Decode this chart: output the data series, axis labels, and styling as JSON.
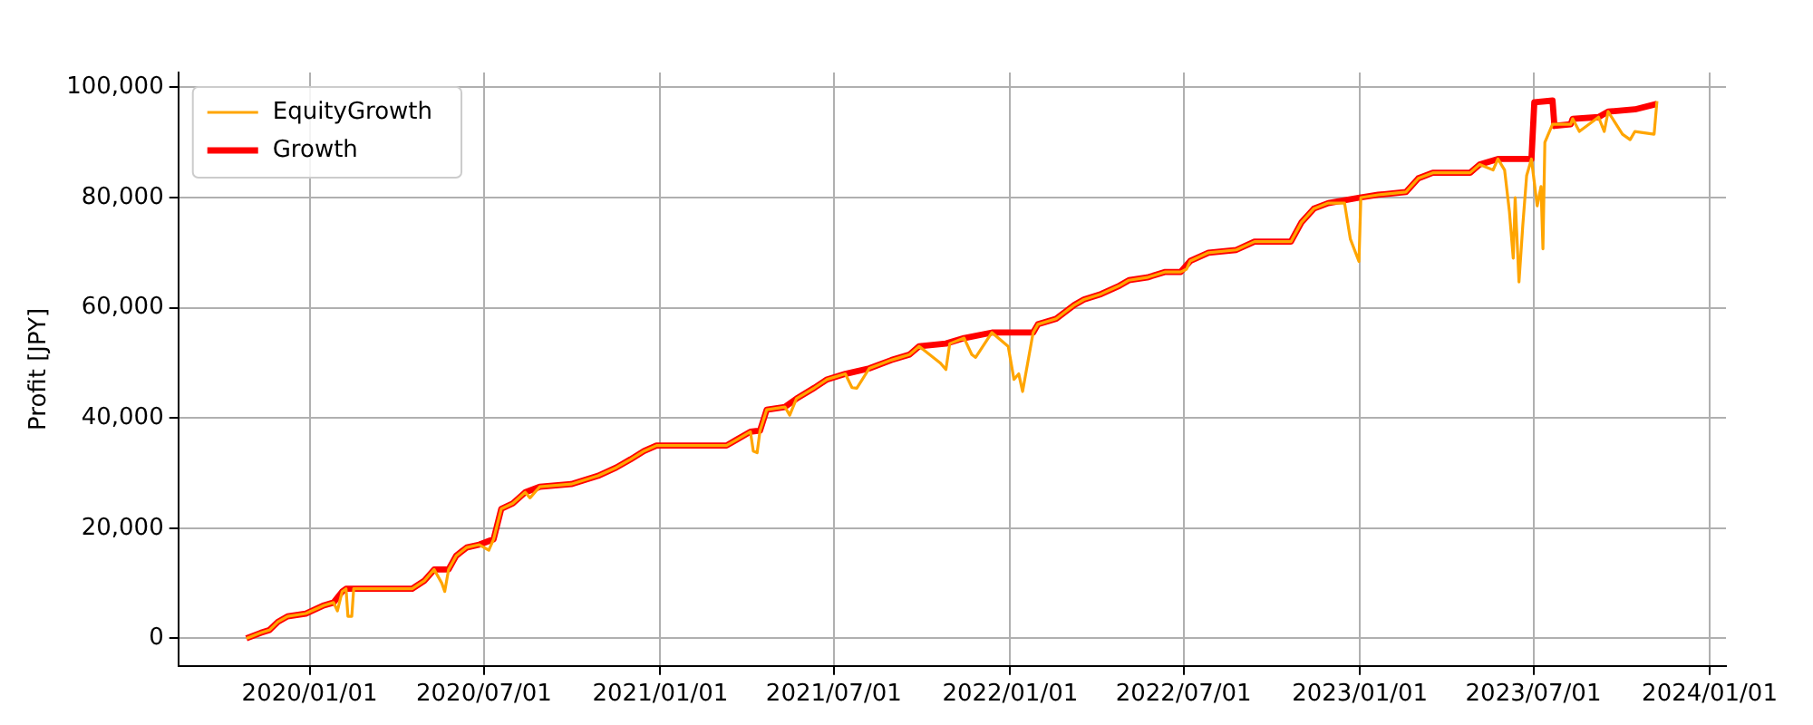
{
  "chart_data": {
    "type": "line",
    "ylabel": "Profit [JPY]",
    "legend": "top left",
    "grid": true,
    "marker": "none",
    "xlim": [
      "2019-08-17",
      "2024-01-18"
    ],
    "xticks": [
      {
        "value": "2020-01-01",
        "label": "2020/01/01"
      },
      {
        "value": "2020-07-01",
        "label": "2020/07/01"
      },
      {
        "value": "2021-01-01",
        "label": "2021/01/01"
      },
      {
        "value": "2021-07-01",
        "label": "2021/07/01"
      },
      {
        "value": "2022-01-01",
        "label": "2022/01/01"
      },
      {
        "value": "2022-07-01",
        "label": "2022/07/01"
      },
      {
        "value": "2023-01-01",
        "label": "2023/01/01"
      },
      {
        "value": "2023-07-01",
        "label": "2023/07/01"
      },
      {
        "value": "2024-01-01",
        "label": "2024/01/01"
      }
    ],
    "ylim": [
      -5000,
      102700
    ],
    "yticks": [
      0,
      {
        "value": 20000,
        "label": "20,000"
      },
      {
        "value": 40000,
        "label": "40,000"
      },
      {
        "value": 60000,
        "label": "60,000"
      },
      {
        "value": 80000,
        "label": "80,000"
      },
      {
        "value": 100000,
        "label": "100,000"
      }
    ],
    "series": [
      {
        "name": "EquityGrowth",
        "color": "#ffa500",
        "x": [
          "2019-10-27",
          "2019-11-11",
          "2019-11-20",
          "2019-11-29",
          "2019-12-09",
          "2019-12-28",
          "2020-01-16",
          "2020-01-26",
          "2020-01-30",
          "2020-02-04",
          "2020-02-08",
          "2020-02-10",
          "2020-02-14",
          "2020-02-16",
          "2020-04-17",
          "2020-04-30",
          "2020-05-10",
          "2020-05-18",
          "2020-05-21",
          "2020-05-25",
          "2020-06-02",
          "2020-06-13",
          "2020-06-26",
          "2020-07-06",
          "2020-07-11",
          "2020-07-19",
          "2020-07-31",
          "2020-08-13",
          "2020-08-18",
          "2020-08-28",
          "2020-09-30",
          "2020-10-28",
          "2020-11-16",
          "2020-12-01",
          "2020-12-15",
          "2020-12-28",
          "2021-03-11",
          "2021-03-21",
          "2021-04-05",
          "2021-04-08",
          "2021-04-12",
          "2021-04-15",
          "2021-04-22",
          "2021-05-11",
          "2021-05-16",
          "2021-05-23",
          "2021-06-11",
          "2021-06-24",
          "2021-07-13",
          "2021-07-20",
          "2021-07-25",
          "2021-08-07",
          "2021-08-30",
          "2021-09-18",
          "2021-09-28",
          "2021-10-20",
          "2021-10-26",
          "2021-10-30",
          "2021-11-14",
          "2021-11-22",
          "2021-11-26",
          "2021-12-13",
          "2021-12-30",
          "2022-01-05",
          "2022-01-10",
          "2022-01-14",
          "2022-01-25",
          "2022-01-30",
          "2022-02-18",
          "2022-03-09",
          "2022-03-19",
          "2022-04-06",
          "2022-04-25",
          "2022-05-05",
          "2022-05-24",
          "2022-06-12",
          "2022-06-28",
          "2022-07-04",
          "2022-07-08",
          "2022-07-27",
          "2022-08-25",
          "2022-09-13",
          "2022-10-21",
          "2022-11-01",
          "2022-11-14",
          "2022-11-29",
          "2022-12-16",
          "2022-12-22",
          "2022-12-31",
          "2023-01-02",
          "2023-01-20",
          "2023-02-18",
          "2023-03-03",
          "2023-03-18",
          "2023-04-26",
          "2023-05-06",
          "2023-05-20",
          "2023-05-25",
          "2023-06-01",
          "2023-06-06",
          "2023-06-10",
          "2023-06-12",
          "2023-06-16",
          "2023-06-20",
          "2023-06-24",
          "2023-06-29",
          "2023-07-05",
          "2023-07-09",
          "2023-07-11",
          "2023-07-13",
          "2023-07-21",
          "2023-08-09",
          "2023-08-11",
          "2023-08-18",
          "2023-09-07",
          "2023-09-13",
          "2023-09-17",
          "2023-10-02",
          "2023-10-10",
          "2023-10-15",
          "2023-11-04",
          "2023-11-07"
        ],
        "values": [
          0,
          1000,
          1500,
          3000,
          4000,
          4500,
          6000,
          6500,
          5000,
          8500,
          9000,
          4000,
          4000,
          9000,
          9000,
          10500,
          12500,
          10000,
          8500,
          12500,
          15000,
          16500,
          17000,
          16000,
          18000,
          23500,
          24500,
          26500,
          25500,
          27500,
          28000,
          29500,
          31000,
          32500,
          34000,
          35000,
          35000,
          36000,
          37500,
          34000,
          33700,
          37700,
          41500,
          42000,
          40500,
          43500,
          45500,
          47000,
          48000,
          45500,
          45400,
          49000,
          50500,
          51500,
          53000,
          50000,
          48800,
          53500,
          54500,
          51500,
          51000,
          55500,
          53000,
          47000,
          48000,
          44800,
          55500,
          57000,
          58000,
          60500,
          61500,
          62500,
          64000,
          65000,
          65500,
          66500,
          66500,
          67000,
          68500,
          70000,
          70500,
          72000,
          72000,
          75500,
          78000,
          79000,
          79000,
          72500,
          68400,
          80000,
          80500,
          81000,
          83500,
          84500,
          84500,
          86000,
          85000,
          87000,
          85000,
          77500,
          69000,
          80000,
          64700,
          75000,
          84000,
          87000,
          78500,
          82000,
          70700,
          90000,
          93300,
          93300,
          94300,
          92000,
          94600,
          92000,
          95600,
          91500,
          90500,
          92000,
          91500,
          97500
        ]
      },
      {
        "name": "Growth",
        "color": "#ff0000",
        "x": [
          "2019-10-27",
          "2019-11-11",
          "2019-11-20",
          "2019-11-29",
          "2019-12-09",
          "2019-12-28",
          "2020-01-16",
          "2020-01-26",
          "2020-02-04",
          "2020-02-08",
          "2020-04-17",
          "2020-04-30",
          "2020-05-10",
          "2020-05-25",
          "2020-06-02",
          "2020-06-13",
          "2020-06-26",
          "2020-07-11",
          "2020-07-19",
          "2020-07-31",
          "2020-08-13",
          "2020-08-28",
          "2020-09-30",
          "2020-10-28",
          "2020-11-16",
          "2020-12-01",
          "2020-12-15",
          "2020-12-28",
          "2021-03-11",
          "2021-03-21",
          "2021-04-05",
          "2021-04-15",
          "2021-04-22",
          "2021-05-11",
          "2021-05-23",
          "2021-06-11",
          "2021-06-24",
          "2021-07-13",
          "2021-08-07",
          "2021-08-30",
          "2021-09-18",
          "2021-09-28",
          "2021-10-26",
          "2021-11-14",
          "2021-12-13",
          "2022-01-25",
          "2022-01-30",
          "2022-02-18",
          "2022-03-09",
          "2022-03-19",
          "2022-04-06",
          "2022-04-25",
          "2022-05-05",
          "2022-05-24",
          "2022-06-12",
          "2022-06-28",
          "2022-07-08",
          "2022-07-27",
          "2022-08-25",
          "2022-09-13",
          "2022-10-21",
          "2022-11-01",
          "2022-11-14",
          "2022-11-29",
          "2023-01-01",
          "2023-01-20",
          "2023-02-18",
          "2023-03-03",
          "2023-03-18",
          "2023-04-26",
          "2023-05-06",
          "2023-05-25",
          "2023-06-29",
          "2023-07-02",
          "2023-07-21",
          "2023-07-23",
          "2023-08-09",
          "2023-08-11",
          "2023-09-07",
          "2023-09-17",
          "2023-10-15",
          "2023-11-07"
        ],
        "values": [
          0,
          1000,
          1500,
          3000,
          4000,
          4500,
          6000,
          6500,
          8500,
          9000,
          9000,
          10500,
          12500,
          12500,
          15000,
          16500,
          17000,
          18000,
          23500,
          24500,
          26500,
          27500,
          28000,
          29500,
          31000,
          32500,
          34000,
          35000,
          35000,
          36000,
          37500,
          37700,
          41500,
          42000,
          43500,
          45500,
          47000,
          48000,
          49000,
          50500,
          51500,
          53000,
          53500,
          54500,
          55500,
          55500,
          57000,
          58000,
          60500,
          61500,
          62500,
          64000,
          65000,
          65500,
          66500,
          66500,
          68500,
          70000,
          70500,
          72000,
          72000,
          75500,
          78000,
          79000,
          80000,
          80500,
          81000,
          83500,
          84500,
          84500,
          86000,
          87000,
          87000,
          97300,
          97600,
          93000,
          93300,
          94300,
          94600,
          95600,
          96000,
          97000
        ]
      }
    ]
  }
}
